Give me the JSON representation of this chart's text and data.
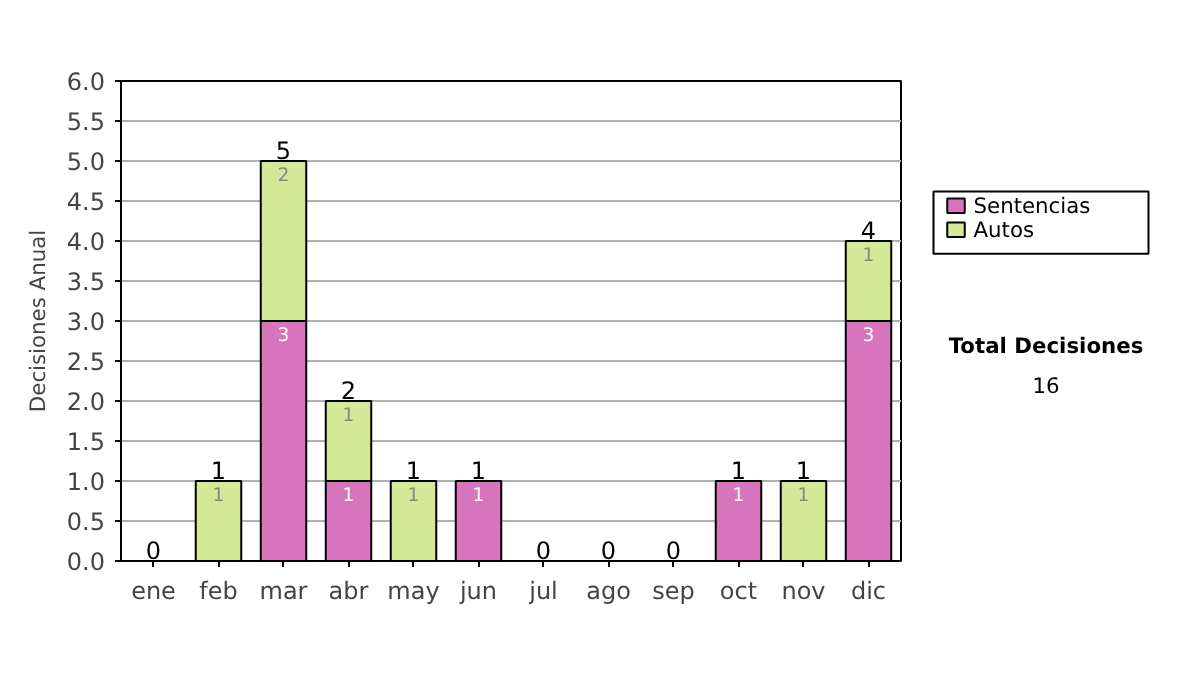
{
  "chart_data": {
    "type": "bar",
    "stacked": true,
    "ylabel": "Decisiones Anual",
    "categories": [
      "ene",
      "feb",
      "mar",
      "abr",
      "may",
      "jun",
      "jul",
      "ago",
      "sep",
      "oct",
      "nov",
      "dic"
    ],
    "series": [
      {
        "name": "Sentencias",
        "color": "#d674bc",
        "values": [
          null,
          null,
          3,
          1,
          null,
          1,
          null,
          null,
          null,
          1,
          null,
          3
        ],
        "value_labels": [
          null,
          null,
          "3",
          "1",
          null,
          "1",
          null,
          null,
          null,
          "1",
          null,
          "3"
        ]
      },
      {
        "name": "Autos",
        "color": "#d4e897",
        "values": [
          null,
          1,
          2,
          1,
          1,
          null,
          null,
          null,
          null,
          null,
          1,
          1
        ],
        "value_labels": [
          null,
          "1",
          "2",
          "1",
          "1",
          null,
          null,
          null,
          null,
          null,
          "1",
          "1"
        ]
      }
    ],
    "totals": [
      "0",
      "1",
      "5",
      "2",
      "1",
      "1",
      "0",
      "0",
      "0",
      "1",
      "1",
      "4"
    ],
    "ylim": [
      0,
      6
    ],
    "yticks": [
      {
        "value": 0,
        "label": "0.0"
      },
      {
        "value": 0.5,
        "label": "0.5"
      },
      {
        "value": 1,
        "label": "1.0"
      },
      {
        "value": 1.5,
        "label": "1.5"
      },
      {
        "value": 2,
        "label": "2.0"
      },
      {
        "value": 2.5,
        "label": "2.5"
      },
      {
        "value": 3,
        "label": "3.0"
      },
      {
        "value": 3.5,
        "label": "3.5"
      },
      {
        "value": 4,
        "label": "4.0"
      },
      {
        "value": 4.5,
        "label": "4.5"
      },
      {
        "value": 5,
        "label": "5.0"
      },
      {
        "value": 5.5,
        "label": "5.5"
      },
      {
        "value": 6,
        "label": "6.0"
      }
    ],
    "grid": "y",
    "legend": "right",
    "annotations": [
      "Total Decisiones",
      "16"
    ]
  }
}
